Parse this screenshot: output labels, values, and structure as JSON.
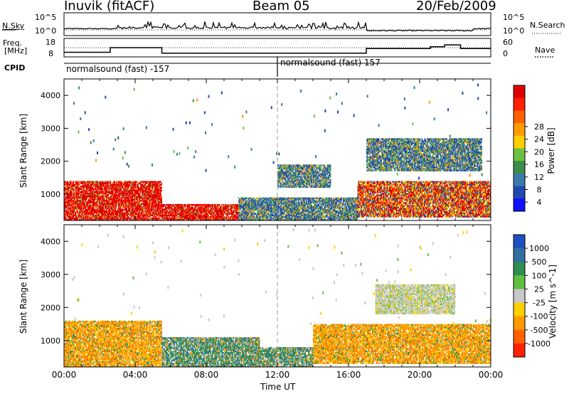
{
  "header": {
    "station": "Inuvik (fitACF)",
    "beam": "Beam 05",
    "date": "20/Feb/2009"
  },
  "panels": {
    "nsky": {
      "label": "N.Sky",
      "tick_top": "10^5",
      "tick_bottom": "10^0",
      "right_tick_top": "10^5",
      "right_tick_bottom": "10^0",
      "right_label": "N.Search"
    },
    "freq": {
      "label_line1": "Freq.",
      "label_line2": "[MHz]",
      "tick_top": "18",
      "tick_bottom": "8",
      "right_tick_top": "60",
      "right_tick_bottom": "0",
      "right_label": "Nave"
    },
    "cpid": {
      "label": "CPID",
      "segments": [
        {
          "text": "normalsound (fast) -157",
          "start_hour": 0,
          "end_hour": 12
        },
        {
          "text": "normalsound (fast) 157",
          "start_hour": 12,
          "end_hour": 24
        }
      ]
    }
  },
  "chart_data": [
    {
      "type": "heatmap",
      "title": "",
      "xlabel": "",
      "ylabel": "Slant Range [km]",
      "xlim": [
        0,
        24
      ],
      "ylim": [
        200,
        4500
      ],
      "x_ticks": [
        "00:00",
        "04:00",
        "08:00",
        "12:00",
        "16:00",
        "20:00",
        "00:00"
      ],
      "y_ticks": [
        "1000",
        "2000",
        "3000",
        "4000"
      ],
      "colorbar": {
        "label": "Power [dB]",
        "ticks": [
          "4",
          "8",
          "12",
          "16",
          "20",
          "24",
          "28"
        ],
        "colors": [
          "#1010ff",
          "#2048b0",
          "#3a7aa8",
          "#3c8e46",
          "#6cc040",
          "#ffd000",
          "#ff9a00",
          "#ff6000",
          "#ff2000",
          "#e00000"
        ]
      },
      "regions": [
        {
          "start_hour": 0.0,
          "end_hour": 5.5,
          "low_km": 200,
          "high_km": 1400,
          "level": "high"
        },
        {
          "start_hour": 5.5,
          "end_hour": 9.8,
          "low_km": 200,
          "high_km": 700,
          "level": "high"
        },
        {
          "start_hour": 9.8,
          "end_hour": 16.5,
          "low_km": 200,
          "high_km": 900,
          "level": "low"
        },
        {
          "start_hour": 12.0,
          "end_hour": 15.0,
          "low_km": 1200,
          "high_km": 1900,
          "level": "low"
        },
        {
          "start_hour": 16.5,
          "end_hour": 24.0,
          "low_km": 300,
          "high_km": 1400,
          "level": "mid"
        },
        {
          "start_hour": 17.0,
          "end_hour": 23.5,
          "low_km": 1700,
          "high_km": 2700,
          "level": "low"
        }
      ]
    },
    {
      "type": "heatmap",
      "title": "",
      "xlabel": "Time UT",
      "ylabel": "Slant Range [km]",
      "xlim": [
        0,
        24
      ],
      "ylim": [
        200,
        4500
      ],
      "x_ticks": [
        "00:00",
        "04:00",
        "08:00",
        "12:00",
        "16:00",
        "20:00",
        "00:00"
      ],
      "y_ticks": [
        "1000",
        "2000",
        "3000",
        "4000"
      ],
      "colorbar": {
        "label": "Velocity [m s^-1]",
        "ticks": [
          "1000",
          "500",
          "100",
          "25",
          "-25",
          "-100",
          "-500",
          "-1000"
        ],
        "colors": [
          "#2050c0",
          "#3070a0",
          "#2f8e50",
          "#5fc040",
          "#c8c8c8",
          "#ffd000",
          "#ff9a00",
          "#ff6000",
          "#ff2000"
        ]
      },
      "regions": [
        {
          "start_hour": 0.0,
          "end_hour": 5.5,
          "low_km": 200,
          "high_km": 1600,
          "level": "negative"
        },
        {
          "start_hour": 5.5,
          "end_hour": 11.0,
          "low_km": 200,
          "high_km": 1100,
          "level": "positive"
        },
        {
          "start_hour": 11.0,
          "end_hour": 14.0,
          "low_km": 200,
          "high_km": 800,
          "level": "positive"
        },
        {
          "start_hour": 14.0,
          "end_hour": 24.0,
          "low_km": 300,
          "high_km": 1500,
          "level": "negative"
        },
        {
          "start_hour": 17.5,
          "end_hour": 22.0,
          "low_km": 1800,
          "high_km": 2700,
          "level": "neutral"
        }
      ]
    }
  ]
}
